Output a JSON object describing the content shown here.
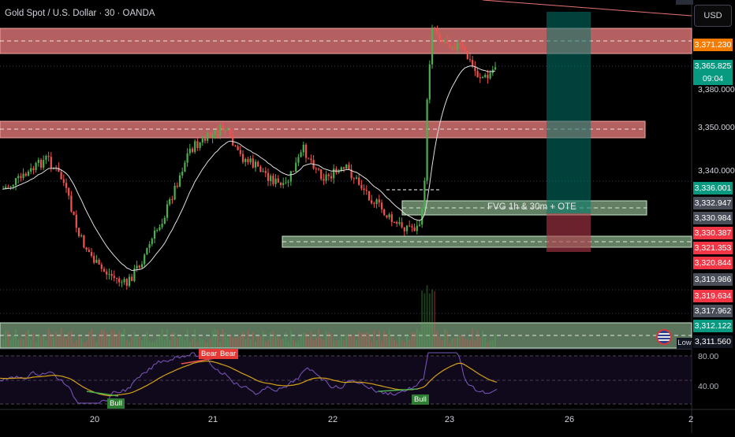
{
  "chart_title": "Gold Spot / U.S. Dollar · 30 · OANDA",
  "currency_button": "USD",
  "fvg_label": "FVG 1h & 30m + OTE",
  "low_label": "Low",
  "price_axis": [
    "3,350.000",
    "3,340.000",
    "3,380.000"
  ],
  "price_tags": [
    {
      "text": "3,371.230",
      "color": "#f57c00"
    },
    {
      "text": "3,365.825",
      "color": "#089981"
    },
    {
      "text": "09:04",
      "color": "#089981"
    },
    {
      "text": "3,336.001",
      "color": "#089981"
    },
    {
      "text": "3,332.947",
      "color": "#4a4e59"
    },
    {
      "text": "3,330.984",
      "color": "#4a4e59"
    },
    {
      "text": "3,330.387",
      "color": "#f23645"
    },
    {
      "text": "3,321.353",
      "color": "#f23645"
    },
    {
      "text": "3,320.844",
      "color": "#f23645"
    },
    {
      "text": "3,319.986",
      "color": "#4a4e59"
    },
    {
      "text": "3,319.634",
      "color": "#f23645"
    },
    {
      "text": "3,317.962",
      "color": "#4a4e59"
    },
    {
      "text": "3,312.122",
      "color": "#089981"
    },
    {
      "text": "3,311.560",
      "color": "#131722"
    }
  ],
  "rsi_axis": [
    "80.00",
    "40.00"
  ],
  "rsi_tags": {
    "bull_1": "Bull",
    "bull_2": "Bull",
    "bear_1": "Bear",
    "bear_2": "Bear"
  },
  "date_labels": [
    "20",
    "21",
    "22",
    "23",
    "26",
    "2"
  ],
  "colors": {
    "supply_zone": "#f08080",
    "demand_zone": "#a5d6a7",
    "bull_candle": "#4caf50",
    "bear_candle": "#ef5350",
    "long_position_target": "#00796b",
    "long_position_stop": "#b2384a",
    "rsi_line": "#7e57c2",
    "rsi_ma": "#d4a017"
  }
}
